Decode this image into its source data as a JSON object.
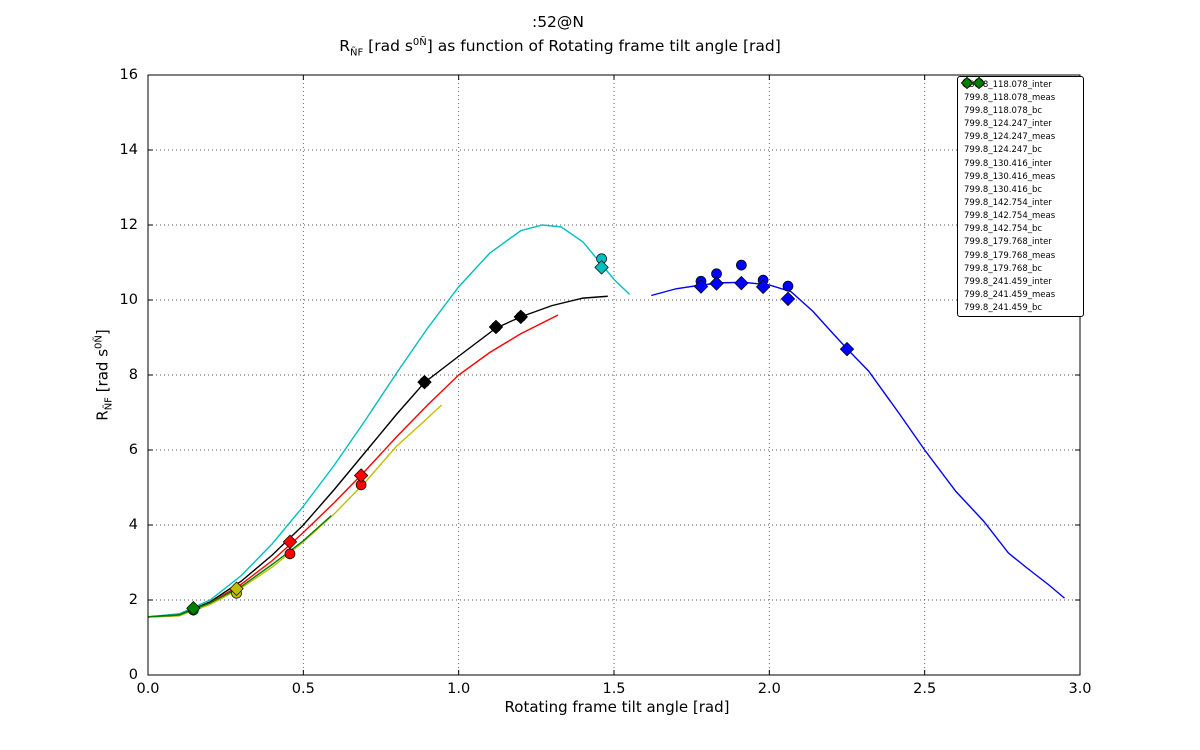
{
  "figure": {
    "title_line1": ":52@N",
    "title2_prefix": "R",
    "title2_sub": "ÑF",
    "title2_mid": " [rad s",
    "title2_sup": "0Ñ",
    "title2_suffix": "] as function of Rotating frame tilt angle [rad]",
    "ylabel_prefix": "R",
    "ylabel_sub": "ÑF",
    "ylabel_mid": " [rad s",
    "ylabel_sup": "0Ñ",
    "ylabel_suffix": "]",
    "xlabel": "Rotating frame tilt angle [rad]",
    "background_color": "#ffffff"
  },
  "chart_data": {
    "type": "line",
    "title": ":52@N",
    "subtitle": "R_ÑF [rad s^0Ñ] as function of Rotating frame tilt angle [rad]",
    "xlabel": "Rotating frame tilt angle [rad]",
    "ylabel": "R_ÑF [rad s^0Ñ]",
    "xlim": [
      0.0,
      3.0
    ],
    "ylim": [
      0,
      16
    ],
    "xticks": [
      0.0,
      0.5,
      1.0,
      1.5,
      2.0,
      2.5,
      3.0
    ],
    "xtick_labels": [
      "0.0",
      "0.5",
      "1.0",
      "1.5",
      "2.0",
      "2.5",
      "3.0"
    ],
    "yticks": [
      0,
      2,
      4,
      6,
      8,
      10,
      12,
      14,
      16
    ],
    "ytick_labels": [
      "0",
      "2",
      "4",
      "6",
      "8",
      "10",
      "12",
      "14",
      "16"
    ],
    "grid": "dotted",
    "legend_position": "upper right",
    "marker_meas": "circle",
    "marker_bc": "diamond",
    "series": [
      {
        "id": "799.8_118.078",
        "color": "#0000ff",
        "labels": {
          "inter": "799.8_118.078_inter",
          "meas": "799.8_118.078_meas",
          "bc": "799.8_118.078_bc"
        },
        "line": [
          [
            1.62,
            10.12
          ],
          [
            1.7,
            10.3
          ],
          [
            1.78,
            10.4
          ],
          [
            1.85,
            10.46
          ],
          [
            1.92,
            10.47
          ],
          [
            2.0,
            10.4
          ],
          [
            2.07,
            10.22
          ],
          [
            2.14,
            9.7
          ],
          [
            2.2,
            9.15
          ],
          [
            2.25,
            8.7
          ],
          [
            2.32,
            8.1
          ],
          [
            2.42,
            6.95
          ],
          [
            2.5,
            6.0
          ],
          [
            2.6,
            4.9
          ],
          [
            2.69,
            4.1
          ],
          [
            2.77,
            3.25
          ],
          [
            2.83,
            2.85
          ],
          [
            2.9,
            2.4
          ],
          [
            2.95,
            2.05
          ]
        ],
        "meas": [
          [
            1.78,
            10.5
          ],
          [
            1.83,
            10.7
          ],
          [
            1.91,
            10.93
          ],
          [
            1.98,
            10.53
          ],
          [
            2.06,
            10.37
          ]
        ],
        "bc": [
          [
            1.78,
            10.36
          ],
          [
            1.83,
            10.44
          ],
          [
            1.91,
            10.45
          ],
          [
            1.98,
            10.35
          ],
          [
            2.06,
            10.03
          ],
          [
            2.25,
            8.69
          ]
        ]
      },
      {
        "id": "799.8_124.247",
        "color": "#00bfbf",
        "labels": {
          "inter": "799.8_124.247_inter",
          "meas": "799.8_124.247_meas",
          "bc": "799.8_124.247_bc"
        },
        "line": [
          [
            0.0,
            1.55
          ],
          [
            0.1,
            1.63
          ],
          [
            0.2,
            2.0
          ],
          [
            0.3,
            2.65
          ],
          [
            0.4,
            3.5
          ],
          [
            0.5,
            4.5
          ],
          [
            0.6,
            5.6
          ],
          [
            0.7,
            6.8
          ],
          [
            0.8,
            8.05
          ],
          [
            0.9,
            9.25
          ],
          [
            1.0,
            10.35
          ],
          [
            1.1,
            11.25
          ],
          [
            1.2,
            11.85
          ],
          [
            1.27,
            12.0
          ],
          [
            1.33,
            11.95
          ],
          [
            1.4,
            11.55
          ],
          [
            1.46,
            10.95
          ],
          [
            1.5,
            10.55
          ],
          [
            1.55,
            10.15
          ]
        ],
        "meas": [
          [
            1.46,
            11.1
          ]
        ],
        "bc": [
          [
            1.46,
            10.87
          ]
        ]
      },
      {
        "id": "799.8_130.416",
        "color": "#000000",
        "labels": {
          "inter": "799.8_130.416_inter",
          "meas": "799.8_130.416_meas",
          "bc": "799.8_130.416_bc"
        },
        "line": [
          [
            0.0,
            1.55
          ],
          [
            0.1,
            1.6
          ],
          [
            0.2,
            1.95
          ],
          [
            0.3,
            2.5
          ],
          [
            0.4,
            3.2
          ],
          [
            0.5,
            4.0
          ],
          [
            0.6,
            4.95
          ],
          [
            0.7,
            5.95
          ],
          [
            0.8,
            6.95
          ],
          [
            0.89,
            7.8
          ],
          [
            1.0,
            8.5
          ],
          [
            1.12,
            9.25
          ],
          [
            1.2,
            9.55
          ],
          [
            1.3,
            9.85
          ],
          [
            1.4,
            10.05
          ],
          [
            1.48,
            10.1
          ]
        ],
        "meas": [
          [
            0.89,
            7.81
          ],
          [
            1.12,
            9.28
          ],
          [
            1.2,
            9.55
          ]
        ],
        "bc": [
          [
            0.89,
            7.81
          ],
          [
            1.12,
            9.28
          ],
          [
            1.2,
            9.55
          ]
        ]
      },
      {
        "id": "799.8_142.754",
        "color": "#ff0000",
        "labels": {
          "inter": "799.8_142.754_inter",
          "meas": "799.8_142.754_meas",
          "bc": "799.8_142.754_bc"
        },
        "line": [
          [
            0.0,
            1.55
          ],
          [
            0.1,
            1.58
          ],
          [
            0.2,
            1.92
          ],
          [
            0.3,
            2.42
          ],
          [
            0.4,
            3.05
          ],
          [
            0.5,
            3.8
          ],
          [
            0.6,
            4.6
          ],
          [
            0.7,
            5.45
          ],
          [
            0.8,
            6.35
          ],
          [
            0.9,
            7.2
          ],
          [
            1.0,
            8.0
          ],
          [
            1.1,
            8.6
          ],
          [
            1.2,
            9.1
          ],
          [
            1.32,
            9.6
          ]
        ],
        "meas": [
          [
            0.457,
            3.23
          ],
          [
            0.686,
            5.07
          ]
        ],
        "bc": [
          [
            0.457,
            3.55
          ],
          [
            0.686,
            5.32
          ]
        ]
      },
      {
        "id": "799.8_179.768",
        "color": "#bfbf00",
        "labels": {
          "inter": "799.8_179.768_inter",
          "meas": "799.8_179.768_meas",
          "bc": "799.8_179.768_bc"
        },
        "line": [
          [
            0.0,
            1.55
          ],
          [
            0.1,
            1.58
          ],
          [
            0.2,
            1.88
          ],
          [
            0.3,
            2.32
          ],
          [
            0.4,
            2.88
          ],
          [
            0.5,
            3.55
          ],
          [
            0.6,
            4.3
          ],
          [
            0.7,
            5.15
          ],
          [
            0.8,
            6.1
          ],
          [
            0.88,
            6.7
          ],
          [
            0.945,
            7.2
          ]
        ],
        "meas": [
          [
            0.285,
            2.18
          ]
        ],
        "bc": [
          [
            0.285,
            2.3
          ]
        ]
      },
      {
        "id": "799.8_241.459",
        "color": "#008000",
        "labels": {
          "inter": "799.8_241.459_inter",
          "meas": "799.8_241.459_meas",
          "bc": "799.8_241.459_bc"
        },
        "line": [
          [
            0.0,
            1.55
          ],
          [
            0.1,
            1.6
          ],
          [
            0.15,
            1.76
          ],
          [
            0.2,
            1.92
          ],
          [
            0.3,
            2.36
          ],
          [
            0.4,
            2.95
          ],
          [
            0.5,
            3.58
          ],
          [
            0.59,
            4.25
          ]
        ],
        "meas": [
          [
            0.146,
            1.73
          ]
        ],
        "bc": [
          [
            0.146,
            1.78
          ]
        ]
      }
    ]
  }
}
